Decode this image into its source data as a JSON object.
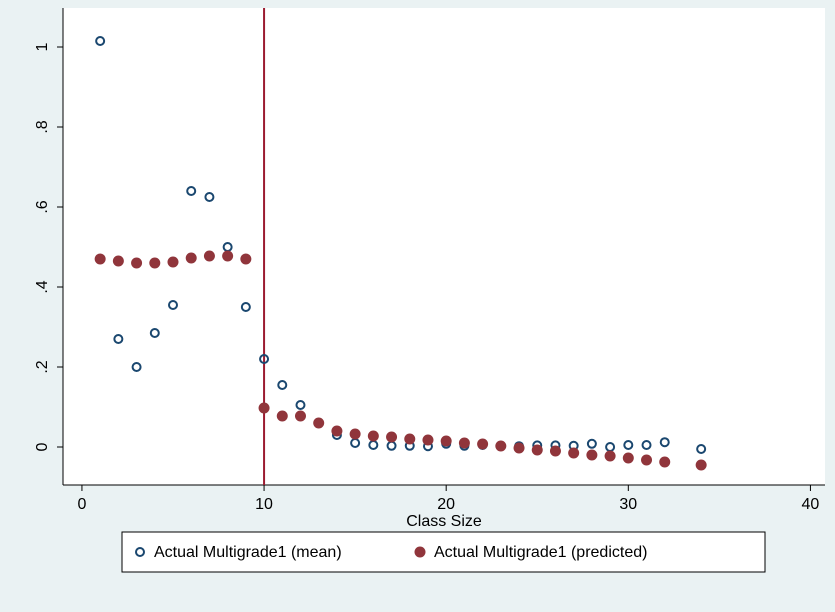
{
  "chart_data": {
    "type": "scatter",
    "xlabel": "Class Size",
    "xlim": [
      -1.04,
      40.8
    ],
    "ylim": [
      -0.095,
      1.0975
    ],
    "xticks": [
      0,
      10,
      20,
      30,
      40
    ],
    "yticks": [
      0,
      {
        "value": 0.2,
        "label": ".2"
      },
      {
        "value": 0.4,
        "label": ".4"
      },
      {
        "value": 0.6,
        "label": ".6"
      },
      {
        "value": 0.8,
        "label": ".8"
      },
      1
    ],
    "vlines": [
      10
    ],
    "vline_color": "#9b1b30",
    "grid": false,
    "series": [
      {
        "name": "Actual Multigrade1 (mean)",
        "color": "#1a476f",
        "marker": "hollow",
        "x": [
          1,
          2,
          3,
          4,
          5,
          6,
          7,
          8,
          9,
          10,
          11,
          12,
          13,
          14,
          15,
          16,
          17,
          18,
          19,
          20,
          21,
          22,
          23,
          24,
          25,
          26,
          27,
          28,
          29,
          30,
          31,
          32,
          34
        ],
        "values": [
          1.015,
          0.27,
          0.2,
          0.285,
          0.355,
          0.64,
          0.625,
          0.5,
          0.35,
          0.22,
          0.155,
          0.105,
          0.06,
          0.03,
          0.01,
          0.005,
          0.003,
          0.003,
          0.002,
          0.008,
          0.003,
          0.005,
          0.003,
          0.002,
          0.004,
          0.004,
          0.003,
          0.008,
          0,
          0.005,
          0.005,
          0.012,
          -0.005
        ]
      },
      {
        "name": "Actual Multigrade1 (predicted)",
        "color": "#90353b",
        "marker": "filled",
        "x": [
          1,
          2,
          3,
          4,
          5,
          6,
          7,
          8,
          9,
          10,
          11,
          12,
          13,
          14,
          15,
          16,
          17,
          18,
          19,
          20,
          21,
          22,
          23,
          24,
          25,
          26,
          27,
          28,
          29,
          30,
          31,
          32,
          34
        ],
        "values": [
          0.47,
          0.465,
          0.46,
          0.46,
          0.4625,
          0.4725,
          0.4775,
          0.4775,
          0.47,
          0.0975,
          0.0775,
          0.0775,
          0.06,
          0.04,
          0.0325,
          0.0275,
          0.025,
          0.02,
          0.0175,
          0.015,
          0.01,
          0.0075,
          0.0025,
          -0.0025,
          -0.0075,
          -0.01,
          -0.015,
          -0.02,
          -0.0225,
          -0.0275,
          -0.0325,
          -0.0375,
          -0.045
        ]
      }
    ]
  }
}
